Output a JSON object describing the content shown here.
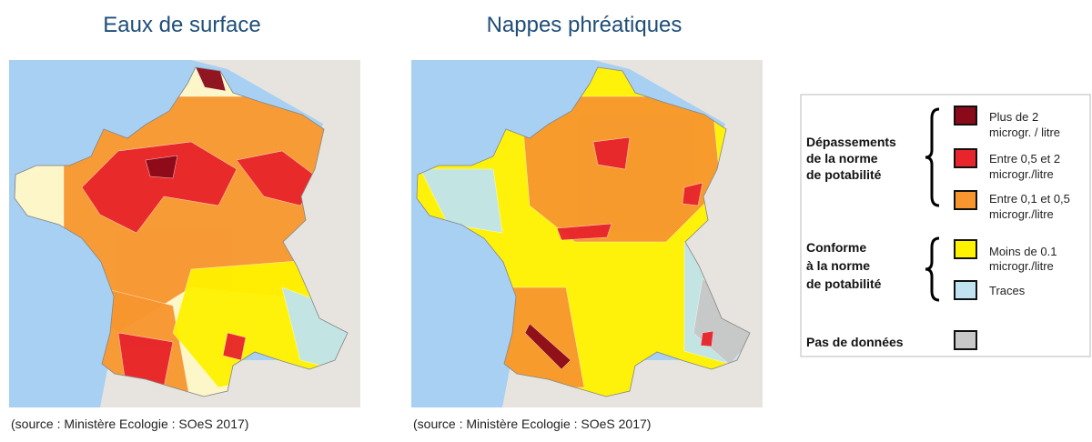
{
  "maps": [
    {
      "title": "Eaux de surface",
      "source": "(source : Ministère Ecologie : SOeS 2017)"
    },
    {
      "title": "Nappes phréatiques",
      "source": "(source : Ministère Ecologie : SOeS 2017)"
    }
  ],
  "legend": {
    "groups": [
      {
        "label": [
          "Dépassements",
          "de la norme",
          "de potabilité"
        ],
        "items": [
          {
            "label": [
              "Plus de 2",
              "microgr. / litre"
            ],
            "color": "#8b0a1a"
          },
          {
            "label": [
              "Entre 0,5 et 2",
              "microgr./litre"
            ],
            "color": "#e8242c"
          },
          {
            "label": [
              "Entre 0,1 et 0,5",
              "microgr./litre"
            ],
            "color": "#f7962f"
          }
        ]
      },
      {
        "label": [
          "Conforme",
          "à la norme",
          "de potabilité"
        ],
        "items": [
          {
            "label": [
              "Moins de 0.1",
              "microgr./litre"
            ],
            "color": "#fff200"
          },
          {
            "label": [
              "Traces"
            ],
            "color": "#bfe3f0"
          }
        ]
      },
      {
        "label": [
          "Pas de données"
        ],
        "items": [
          {
            "label": [],
            "color": "#c8c8c8"
          }
        ]
      }
    ]
  }
}
